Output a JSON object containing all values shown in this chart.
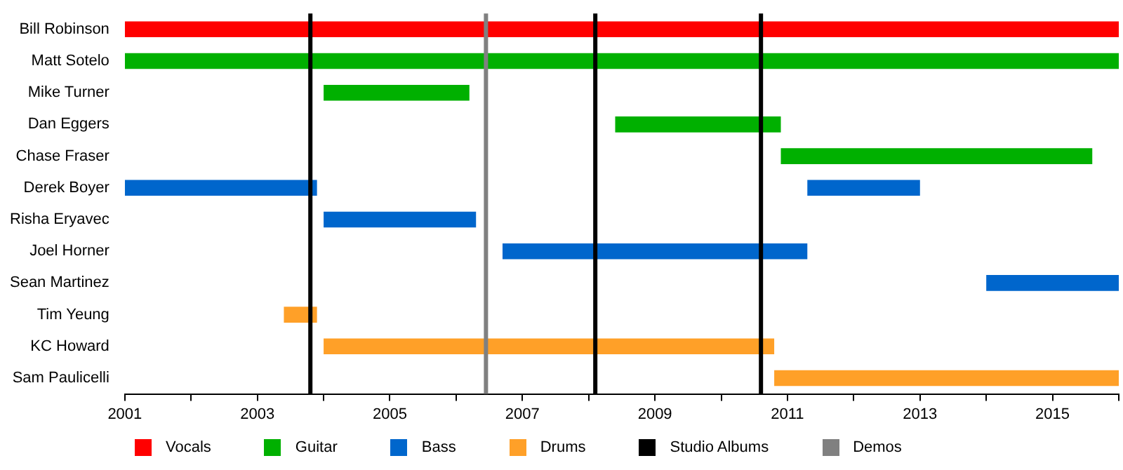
{
  "chart_data": {
    "type": "bar",
    "orientation": "horizontal",
    "categories": [
      "Bill Robinson",
      "Matt Sotelo",
      "Mike Turner",
      "Dan Eggers",
      "Chase Fraser",
      "Derek Boyer",
      "Risha Eryavec",
      "Joel Horner",
      "Sean Martinez",
      "Tim Yeung",
      "KC Howard",
      "Sam Paulicelli"
    ],
    "series": [
      {
        "name": "Vocals",
        "color": "#ff0000",
        "values": [
          15,
          null,
          null,
          null,
          null,
          null,
          null,
          null,
          null,
          null,
          null,
          null
        ],
        "base": [
          2001,
          null,
          null,
          null,
          null,
          null,
          null,
          null,
          null,
          null,
          null,
          null
        ]
      },
      {
        "name": "Guitar",
        "color": "#00b000",
        "values": [
          null,
          15,
          2.2,
          2.5,
          4.7,
          null,
          null,
          null,
          null,
          null,
          null,
          null
        ],
        "base": [
          null,
          2001,
          2004,
          2008.4,
          2010.9,
          null,
          null,
          null,
          null,
          null,
          null,
          null
        ]
      },
      {
        "name": "Bass",
        "color": "#0066cc",
        "values": [
          null,
          null,
          null,
          null,
          null,
          2.9,
          2.3,
          4.6,
          2,
          null,
          null,
          null
        ],
        "base": [
          null,
          null,
          null,
          null,
          null,
          2001,
          2004,
          2006.7,
          2014,
          null,
          null,
          null
        ]
      },
      {
        "color": "#0066cc",
        "values": [
          null,
          null,
          null,
          null,
          null,
          1.7,
          null,
          null,
          null,
          null,
          null,
          null
        ],
        "base": [
          null,
          null,
          null,
          null,
          null,
          2011.3,
          null,
          null,
          null,
          null,
          null,
          null
        ]
      },
      {
        "name": "Drums",
        "color": "#ffa028",
        "values": [
          null,
          null,
          null,
          null,
          null,
          null,
          null,
          null,
          null,
          0.5,
          6.8,
          5.2
        ],
        "base": [
          null,
          null,
          null,
          null,
          null,
          null,
          null,
          null,
          null,
          2003.4,
          2004,
          2010.8
        ]
      }
    ],
    "ref_lines": [
      {
        "axis": "x",
        "value": 2003.8,
        "label": "Studio Albums",
        "color": "#000000"
      },
      {
        "axis": "x",
        "value": 2006.45,
        "label": "Demos",
        "color": "#808080"
      },
      {
        "axis": "x",
        "value": 2008.1,
        "color": "#000000"
      },
      {
        "axis": "x",
        "value": 2010.6,
        "color": "#000000"
      }
    ],
    "xlim": [
      2001,
      2016
    ],
    "xticks": [
      2001,
      {
        "value": 2002,
        "label": null
      },
      2003,
      {
        "value": 2004,
        "label": null
      },
      2005,
      {
        "value": 2006,
        "label": null
      },
      2007,
      {
        "value": 2008,
        "label": null
      },
      2009,
      {
        "value": 2010,
        "label": null
      },
      2011,
      {
        "value": 2012,
        "label": null
      },
      2013,
      {
        "value": 2014,
        "label": null
      },
      2015,
      {
        "value": 2016,
        "label": null
      }
    ],
    "grid": false,
    "legend": "bottom"
  }
}
